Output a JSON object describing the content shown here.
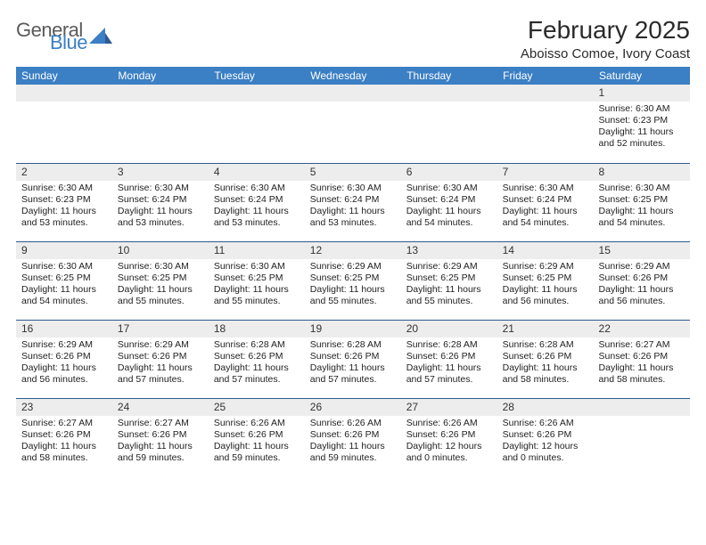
{
  "logo": {
    "general": "General",
    "blue": "Blue"
  },
  "title": "February 2025",
  "subtitle": "Aboisso Comoe, Ivory Coast",
  "colors": {
    "header_bg": "#3b7fc4",
    "header_text": "#ffffff",
    "daynum_bg": "#ededed",
    "row_border": "#2f5a90",
    "logo_blue": "#3b7fc4",
    "logo_gray": "#5a5a5a"
  },
  "weekdays": [
    "Sunday",
    "Monday",
    "Tuesday",
    "Wednesday",
    "Thursday",
    "Friday",
    "Saturday"
  ],
  "weeks": [
    [
      null,
      null,
      null,
      null,
      null,
      null,
      {
        "n": "1",
        "sr": "6:30 AM",
        "ss": "6:23 PM",
        "dl": "11 hours and 52 minutes."
      }
    ],
    [
      {
        "n": "2",
        "sr": "6:30 AM",
        "ss": "6:23 PM",
        "dl": "11 hours and 53 minutes."
      },
      {
        "n": "3",
        "sr": "6:30 AM",
        "ss": "6:24 PM",
        "dl": "11 hours and 53 minutes."
      },
      {
        "n": "4",
        "sr": "6:30 AM",
        "ss": "6:24 PM",
        "dl": "11 hours and 53 minutes."
      },
      {
        "n": "5",
        "sr": "6:30 AM",
        "ss": "6:24 PM",
        "dl": "11 hours and 53 minutes."
      },
      {
        "n": "6",
        "sr": "6:30 AM",
        "ss": "6:24 PM",
        "dl": "11 hours and 54 minutes."
      },
      {
        "n": "7",
        "sr": "6:30 AM",
        "ss": "6:24 PM",
        "dl": "11 hours and 54 minutes."
      },
      {
        "n": "8",
        "sr": "6:30 AM",
        "ss": "6:25 PM",
        "dl": "11 hours and 54 minutes."
      }
    ],
    [
      {
        "n": "9",
        "sr": "6:30 AM",
        "ss": "6:25 PM",
        "dl": "11 hours and 54 minutes."
      },
      {
        "n": "10",
        "sr": "6:30 AM",
        "ss": "6:25 PM",
        "dl": "11 hours and 55 minutes."
      },
      {
        "n": "11",
        "sr": "6:30 AM",
        "ss": "6:25 PM",
        "dl": "11 hours and 55 minutes."
      },
      {
        "n": "12",
        "sr": "6:29 AM",
        "ss": "6:25 PM",
        "dl": "11 hours and 55 minutes."
      },
      {
        "n": "13",
        "sr": "6:29 AM",
        "ss": "6:25 PM",
        "dl": "11 hours and 55 minutes."
      },
      {
        "n": "14",
        "sr": "6:29 AM",
        "ss": "6:25 PM",
        "dl": "11 hours and 56 minutes."
      },
      {
        "n": "15",
        "sr": "6:29 AM",
        "ss": "6:26 PM",
        "dl": "11 hours and 56 minutes."
      }
    ],
    [
      {
        "n": "16",
        "sr": "6:29 AM",
        "ss": "6:26 PM",
        "dl": "11 hours and 56 minutes."
      },
      {
        "n": "17",
        "sr": "6:29 AM",
        "ss": "6:26 PM",
        "dl": "11 hours and 57 minutes."
      },
      {
        "n": "18",
        "sr": "6:28 AM",
        "ss": "6:26 PM",
        "dl": "11 hours and 57 minutes."
      },
      {
        "n": "19",
        "sr": "6:28 AM",
        "ss": "6:26 PM",
        "dl": "11 hours and 57 minutes."
      },
      {
        "n": "20",
        "sr": "6:28 AM",
        "ss": "6:26 PM",
        "dl": "11 hours and 57 minutes."
      },
      {
        "n": "21",
        "sr": "6:28 AM",
        "ss": "6:26 PM",
        "dl": "11 hours and 58 minutes."
      },
      {
        "n": "22",
        "sr": "6:27 AM",
        "ss": "6:26 PM",
        "dl": "11 hours and 58 minutes."
      }
    ],
    [
      {
        "n": "23",
        "sr": "6:27 AM",
        "ss": "6:26 PM",
        "dl": "11 hours and 58 minutes."
      },
      {
        "n": "24",
        "sr": "6:27 AM",
        "ss": "6:26 PM",
        "dl": "11 hours and 59 minutes."
      },
      {
        "n": "25",
        "sr": "6:26 AM",
        "ss": "6:26 PM",
        "dl": "11 hours and 59 minutes."
      },
      {
        "n": "26",
        "sr": "6:26 AM",
        "ss": "6:26 PM",
        "dl": "11 hours and 59 minutes."
      },
      {
        "n": "27",
        "sr": "6:26 AM",
        "ss": "6:26 PM",
        "dl": "12 hours and 0 minutes."
      },
      {
        "n": "28",
        "sr": "6:26 AM",
        "ss": "6:26 PM",
        "dl": "12 hours and 0 minutes."
      },
      null
    ]
  ],
  "labels": {
    "sunrise": "Sunrise:",
    "sunset": "Sunset:",
    "daylight": "Daylight:"
  }
}
